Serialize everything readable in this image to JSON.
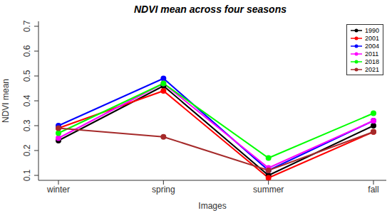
{
  "chart_data": {
    "type": "line",
    "title": "NDVI mean across four seasons",
    "x_label": "Images",
    "y_label": "NDVI mean",
    "categories": [
      "winter",
      "spring",
      "summer",
      "fall"
    ],
    "series": [
      {
        "name": "1990",
        "color": "#000000",
        "values": [
          0.24,
          0.46,
          0.1,
          0.3
        ]
      },
      {
        "name": "2001",
        "color": "#ff0000",
        "values": [
          0.29,
          0.44,
          0.09,
          0.275
        ]
      },
      {
        "name": "2004",
        "color": "#0000ff",
        "values": [
          0.3,
          0.49,
          0.12,
          0.32
        ]
      },
      {
        "name": "2011",
        "color": "#ff00ff",
        "values": [
          0.25,
          0.47,
          0.13,
          0.32
        ]
      },
      {
        "name": "2018",
        "color": "#00ff00",
        "values": [
          0.27,
          0.47,
          0.17,
          0.35
        ]
      },
      {
        "name": "2021",
        "color": "#a52a2a",
        "values": [
          0.29,
          0.255,
          0.12,
          0.275
        ]
      }
    ],
    "ylim": [
      0.08,
      0.72
    ],
    "yticks": [
      0.1,
      0.2,
      0.3,
      0.4,
      0.5,
      0.6,
      0.7
    ],
    "legend": "upper right",
    "marker": "circle"
  }
}
